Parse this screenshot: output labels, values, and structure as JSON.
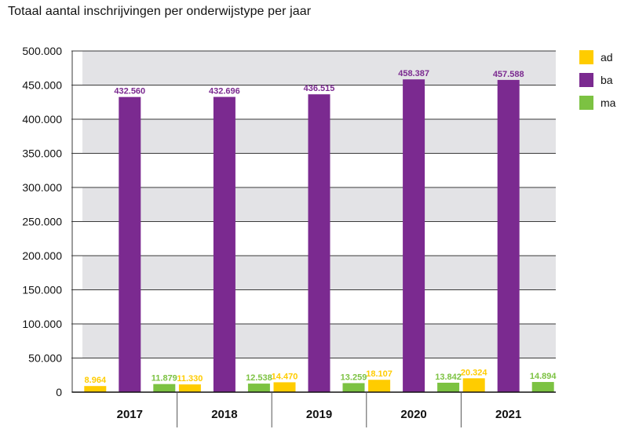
{
  "chart_data": {
    "type": "bar",
    "title": "Totaal aantal inschrijvingen per onderwijstype per jaar",
    "categories": [
      "2017",
      "2018",
      "2019",
      "2020",
      "2021"
    ],
    "series": [
      {
        "name": "ad",
        "color": "#FFCC00",
        "values": [
          8964,
          11330,
          14470,
          18107,
          20324
        ],
        "labels": [
          "8.964",
          "11.330",
          "14.470",
          "18.107",
          "20.324"
        ]
      },
      {
        "name": "ba",
        "color": "#7B2A90",
        "values": [
          432560,
          432696,
          436515,
          458387,
          457588
        ],
        "labels": [
          "432.560",
          "432.696",
          "436.515",
          "458.387",
          "457.588"
        ]
      },
      {
        "name": "ma",
        "color": "#7CC242",
        "values": [
          11879,
          12538,
          13259,
          13842,
          14894
        ],
        "labels": [
          "11.879",
          "12.538",
          "13.259",
          "13.842",
          "14.894"
        ]
      }
    ],
    "ylim": [
      0,
      500000
    ],
    "yticks": [
      0,
      50000,
      100000,
      150000,
      200000,
      250000,
      300000,
      350000,
      400000,
      450000,
      500000
    ],
    "ytick_labels": [
      "0",
      "50.000",
      "100.000",
      "150.000",
      "200.000",
      "250.000",
      "300.000",
      "350.000",
      "400.000",
      "450.000",
      "500.000"
    ],
    "grid": true,
    "background_bands": "alternating grey",
    "legend_position": "right"
  }
}
